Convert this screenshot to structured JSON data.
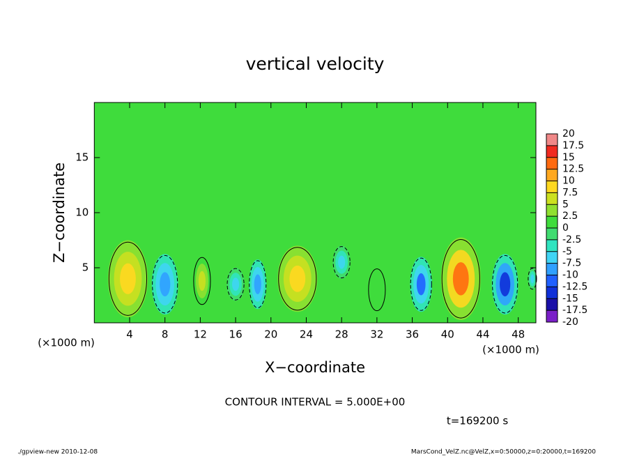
{
  "chart_data": {
    "type": "contour",
    "title": "vertical velocity",
    "x_label": "X−coordinate",
    "y_label": "Z−coordinate",
    "x_unit_left": "(×1000 m)",
    "x_unit_right": "(×1000 m)",
    "contour_interval": "CONTOUR INTERVAL = 5.000E+00",
    "time_label": "t=169200 s",
    "footer_left": "./gpview-new  2010-12-08",
    "footer_right": "MarsCond_VelZ.nc@VelZ,x=0:50000,z=0:20000,t=169200",
    "xlim": [
      0,
      50
    ],
    "ylim": [
      0,
      20
    ],
    "xticks": [
      4,
      8,
      12,
      16,
      20,
      24,
      28,
      32,
      36,
      40,
      44,
      48
    ],
    "yticks": [
      5,
      10,
      15
    ],
    "background_color": "#3fdc3c",
    "colorbar": {
      "levels": [
        -20,
        -17.5,
        -15,
        -12.5,
        -10,
        -7.5,
        -5,
        -2.5,
        0,
        2.5,
        5,
        7.5,
        10,
        12.5,
        15,
        17.5,
        20
      ],
      "colors": [
        "#7a1fc8",
        "#1a10a8",
        "#1030d8",
        "#2060ff",
        "#30a0ff",
        "#40d4f4",
        "#30e4c0",
        "#40dc70",
        "#3fdc3c",
        "#90e030",
        "#cce020",
        "#ffd820",
        "#ffa820",
        "#ff6a10",
        "#f02a20",
        "#f08888"
      ]
    },
    "features": [
      {
        "x": 3.8,
        "z": 4,
        "value": 10,
        "width": 4.5,
        "height": 7
      },
      {
        "x": 8,
        "z": 3.5,
        "value": -7.5,
        "width": 3,
        "height": 5.5
      },
      {
        "x": 12.2,
        "z": 3.8,
        "value": 7.5,
        "width": 2,
        "height": 4.5
      },
      {
        "x": 16,
        "z": 3.5,
        "value": -5,
        "width": 2,
        "height": 3
      },
      {
        "x": 18.5,
        "z": 3.5,
        "value": -7.5,
        "width": 2,
        "height": 4.5
      },
      {
        "x": 23,
        "z": 4,
        "value": 10,
        "width": 4.5,
        "height": 6
      },
      {
        "x": 28,
        "z": 5.5,
        "value": -5,
        "width": 2,
        "height": 3
      },
      {
        "x": 32,
        "z": 3,
        "value": 2.5,
        "width": 2,
        "height": 4
      },
      {
        "x": 37,
        "z": 3.5,
        "value": -10,
        "width": 2.5,
        "height": 5
      },
      {
        "x": 41.5,
        "z": 4,
        "value": 15,
        "width": 4.5,
        "height": 7.5
      },
      {
        "x": 46.5,
        "z": 3.5,
        "value": -12.5,
        "width": 3,
        "height": 5.5
      },
      {
        "x": 49.6,
        "z": 4,
        "value": -5,
        "width": 1,
        "height": 2
      }
    ]
  }
}
